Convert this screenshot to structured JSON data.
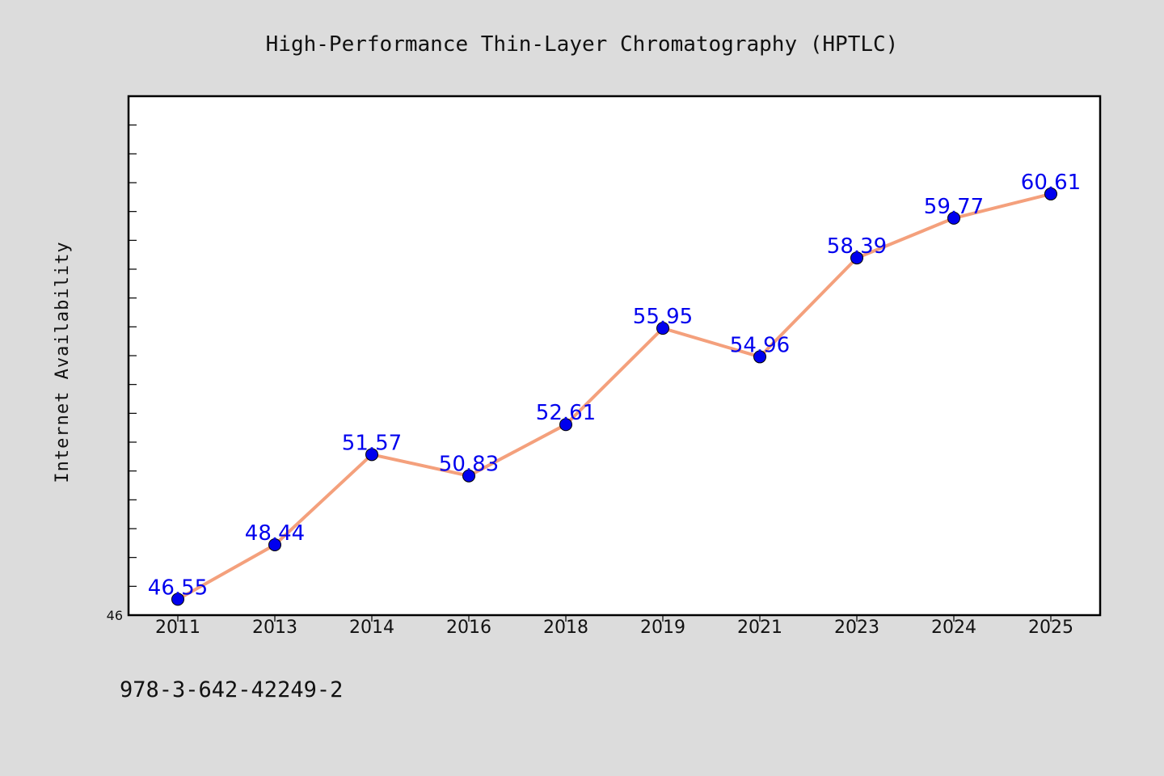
{
  "chart_data": {
    "type": "line",
    "title": "High-Performance Thin-Layer Chromatography (HPTLC)",
    "xlabel": "",
    "ylabel": "Internet Availability",
    "categories": [
      "2011",
      "2013",
      "2014",
      "2016",
      "2018",
      "2019",
      "2021",
      "2023",
      "2024",
      "2025"
    ],
    "series": [
      {
        "values": [
          46.55,
          48.44,
          51.57,
          50.83,
          52.61,
          55.95,
          54.96,
          58.39,
          59.77,
          60.61
        ],
        "labels": [
          "46.55",
          "48.44",
          "51.57",
          "50.83",
          "52.61",
          "55.95",
          "54.96",
          "58.39",
          "59.77",
          "60.61"
        ]
      }
    ],
    "ylim": [
      46,
      64
    ],
    "y_tick_labels": [
      "46"
    ],
    "grid": false,
    "legend": "none"
  },
  "colors": {
    "background": "#dcdcdc",
    "plot_background": "#ffffff",
    "line": "#f4a07c",
    "marker": "#0000ee",
    "data_label": "#0000ee"
  },
  "footer": {
    "code": "978-3-642-42249-2"
  }
}
